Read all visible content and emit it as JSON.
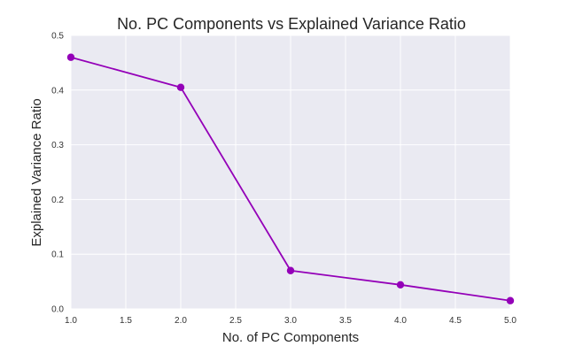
{
  "chart_data": {
    "type": "line",
    "title": "No. PC Components vs Explained Variance Ratio",
    "xlabel": "No. of PC Components",
    "ylabel": "Explained Variance Ratio",
    "xlim": [
      1.0,
      5.0
    ],
    "ylim": [
      0.0,
      0.5
    ],
    "xticks": [
      "1.0",
      "1.5",
      "2.0",
      "2.5",
      "3.0",
      "3.5",
      "4.0",
      "4.5",
      "5.0"
    ],
    "yticks": [
      "0.0",
      "0.1",
      "0.2",
      "0.3",
      "0.4",
      "0.5"
    ],
    "grid": true,
    "legend": false,
    "series": [
      {
        "x": [
          1,
          2,
          3,
          4,
          5
        ],
        "values": [
          0.46,
          0.405,
          0.07,
          0.044,
          0.015
        ],
        "color": "#9400b8",
        "marker": "circle"
      }
    ],
    "background_color": "#eaeaf2",
    "grid_color": "#ffffff"
  }
}
